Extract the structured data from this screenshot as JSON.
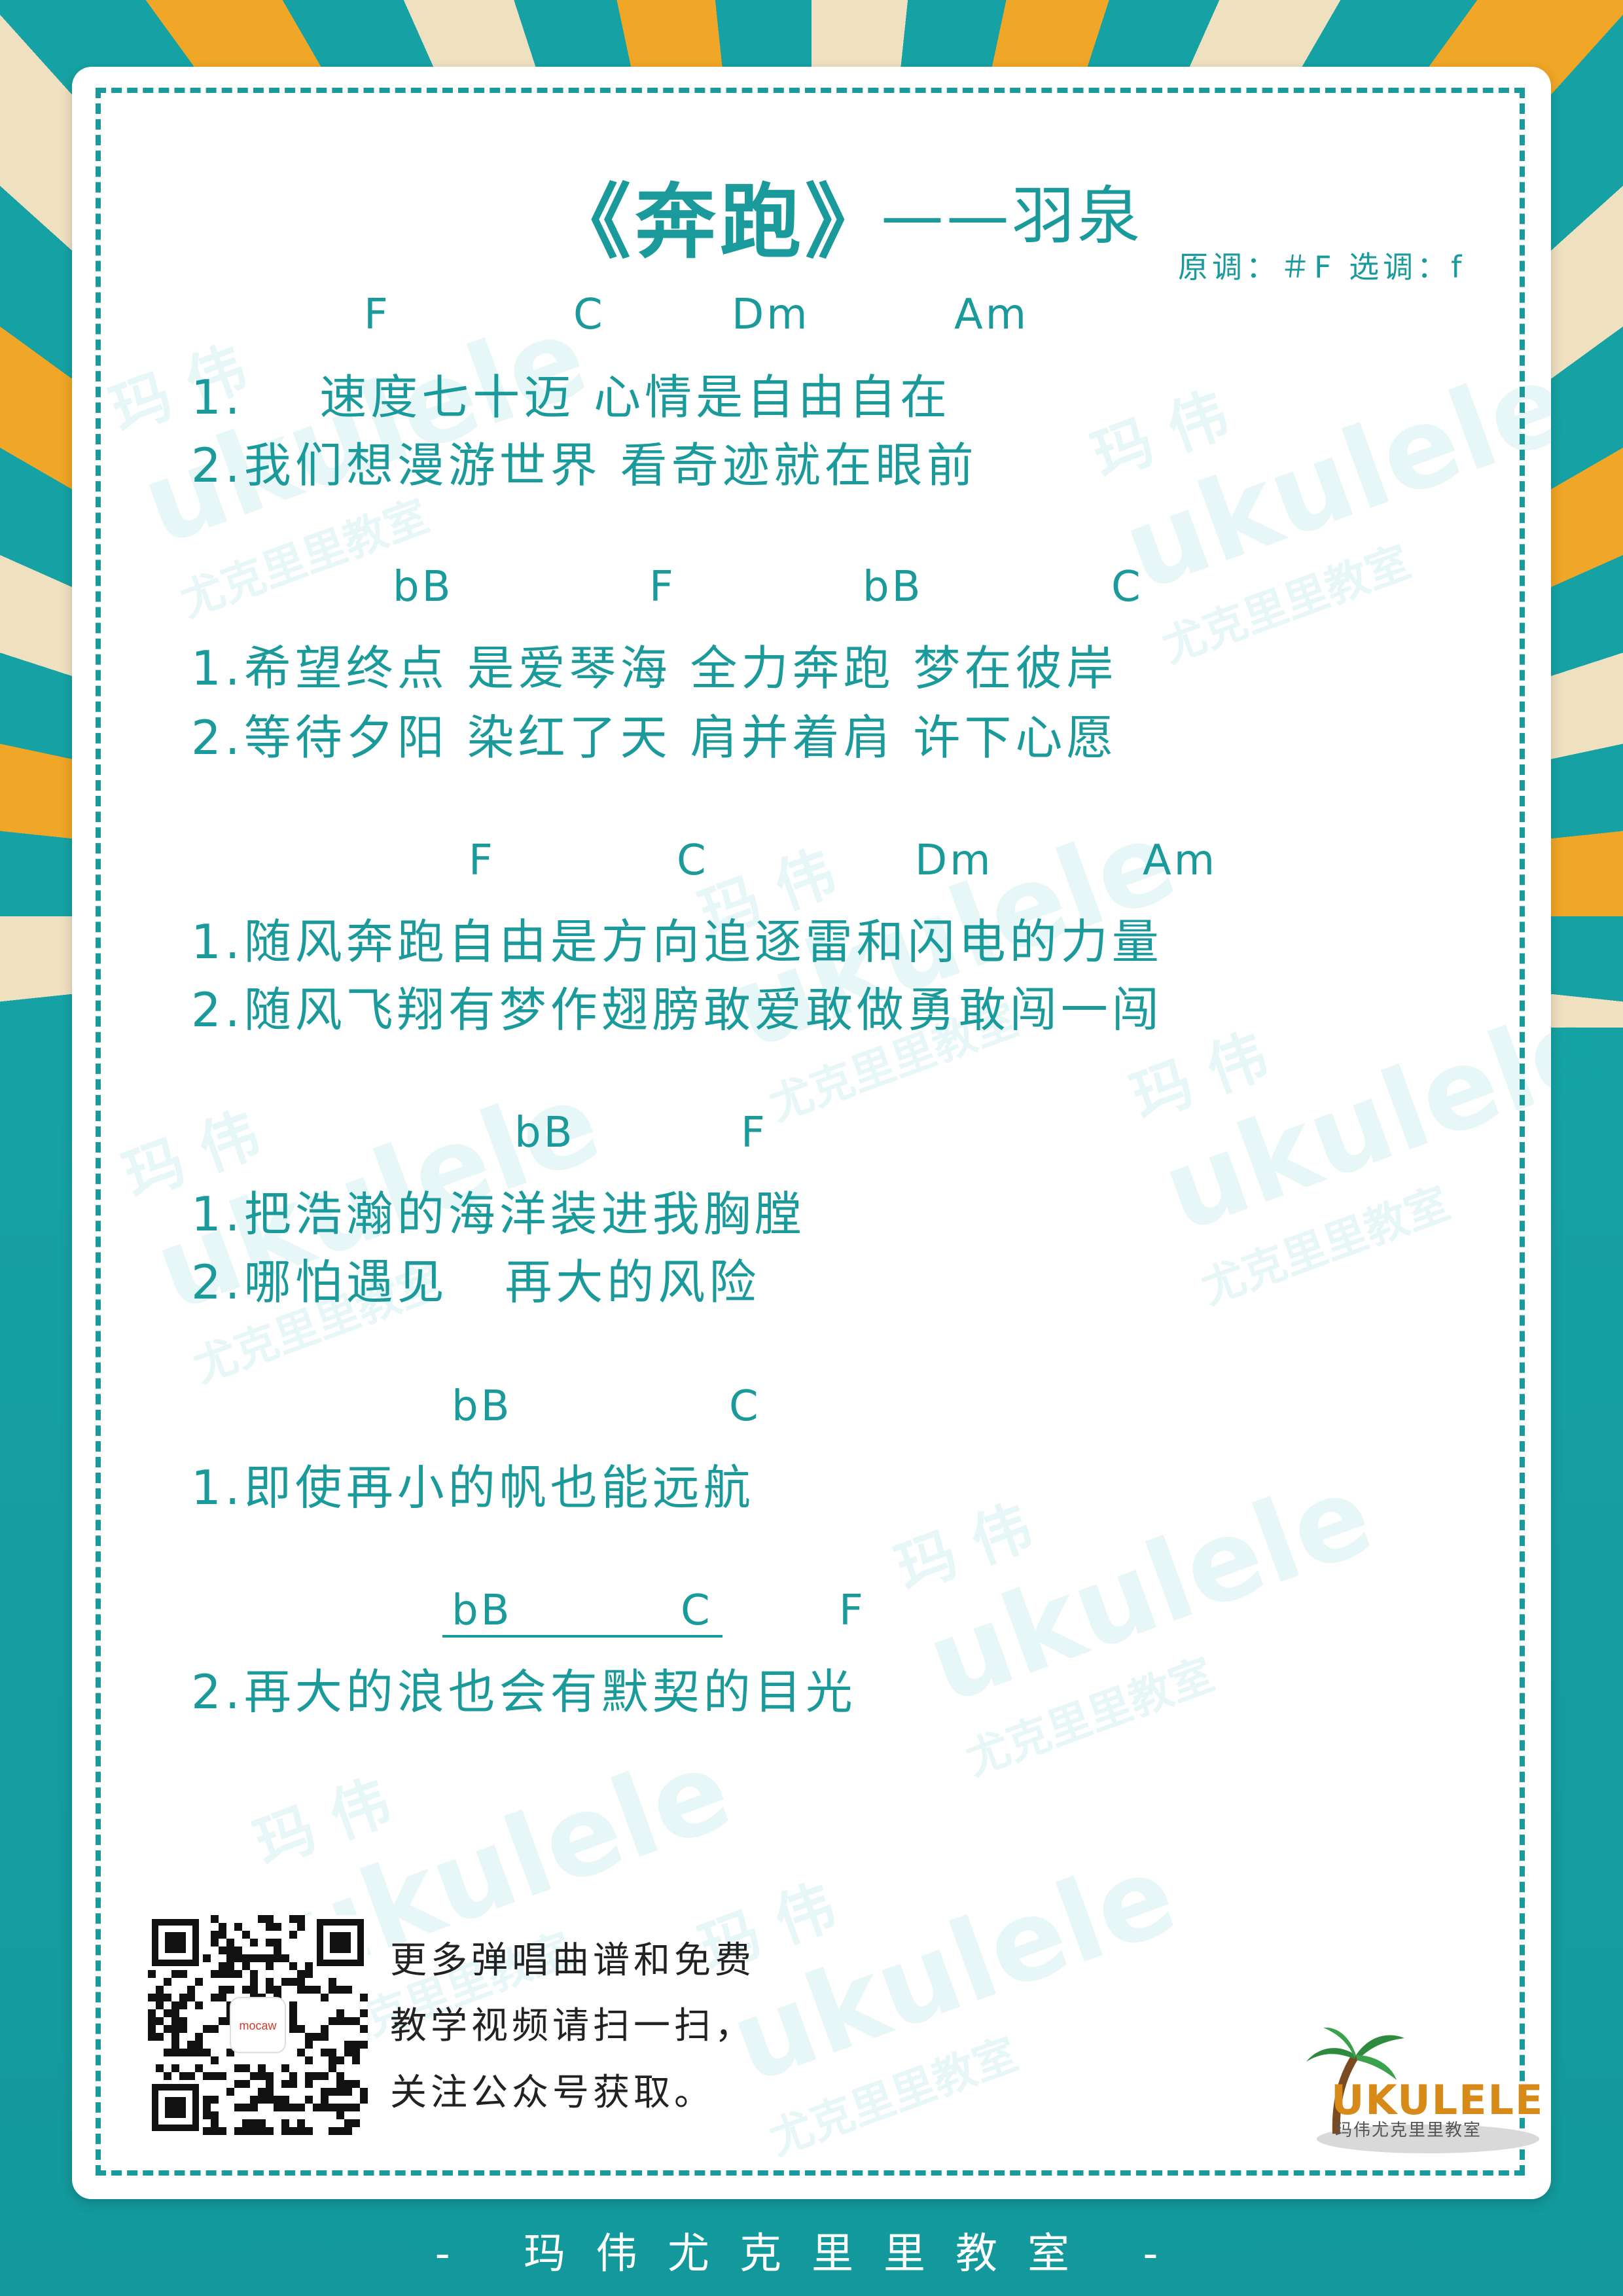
{
  "header": {
    "title": "《奔跑》",
    "author": "——羽泉",
    "key_info": "原调：＃F 选调：f"
  },
  "sections": [
    {
      "chords": [
        "F",
        "C",
        "Dm",
        "Am"
      ],
      "lines": [
        "1.    速度七十迈 心情是自由自在",
        "2.我们想漫游世界 看奇迹就在眼前"
      ]
    },
    {
      "chords": [
        "bB",
        "F",
        "bB",
        "C"
      ],
      "lines": [
        "1.希望终点 是爱琴海 全力奔跑 梦在彼岸",
        "2.等待夕阳 染红了天 肩并着肩 许下心愿"
      ]
    },
    {
      "chords": [
        "F",
        "C",
        "Dm",
        "Am"
      ],
      "lines": [
        "1.随风奔跑自由是方向追逐雷和闪电的力量",
        "2.随风飞翔有梦作翅膀敢爱敢做勇敢闯一闯"
      ]
    },
    {
      "chords": [
        "bB",
        "F"
      ],
      "lines": [
        "1.把浩瀚的海洋装进我胸膛",
        "2.哪怕遇见   再大的风险"
      ]
    },
    {
      "chords": [
        "bB",
        "C"
      ],
      "lines": [
        "1.即使再小的帆也能远航"
      ]
    },
    {
      "chords": [
        "bB",
        "C",
        "F"
      ],
      "lines": [
        "2.再大的浪也会有默契的目光"
      ]
    }
  ],
  "promo": {
    "line1": "更多弹唱曲谱和免费",
    "line2": "教学视频请扫一扫，",
    "line3": "关注公众号获取。"
  },
  "qr_logo_text": "mocaw",
  "logo": {
    "text": "UKULELE",
    "subtitle": "玛伟尤克里里教室"
  },
  "watermark": {
    "line1": "玛 伟",
    "line2": "ukulele",
    "line3": "尤克里里教室"
  },
  "footer": "- 玛伟尤克里里教室 -",
  "colors": {
    "teal": "#1a9a9a",
    "orange": "#f0a626",
    "cream": "#efe0c0",
    "background_teal": "#16a2a4"
  }
}
